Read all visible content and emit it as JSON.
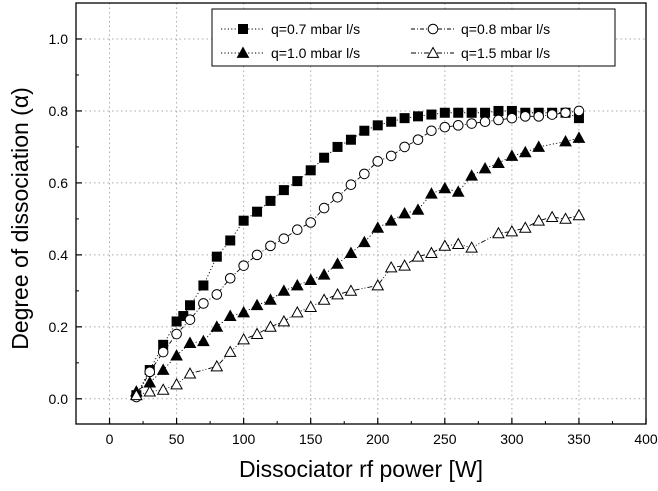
{
  "chart_data": {
    "type": "scatter",
    "title": "",
    "xlabel": "Dissociator rf power [W]",
    "ylabel": "Degree of dissociation (α)",
    "xlim": [
      -25,
      400
    ],
    "ylim": [
      -0.07,
      1.1
    ],
    "xticks": [
      0,
      50,
      100,
      150,
      200,
      250,
      300,
      350,
      400
    ],
    "xtick_labels": [
      "0",
      "50",
      "100",
      "150",
      "200",
      "250",
      "300",
      "350",
      "400"
    ],
    "yticks": [
      0.0,
      0.2,
      0.4,
      0.6,
      0.8,
      1.0
    ],
    "ytick_labels": [
      "0.0",
      "0.2",
      "0.4",
      "0.6",
      "0.8",
      "1.0"
    ],
    "grid": true,
    "legend_position": "top-right",
    "series": [
      {
        "name": "q=0.7 mbar l/s",
        "marker": "filled-square",
        "line": "dotted",
        "x": [
          20,
          30,
          40,
          50,
          55,
          60,
          70,
          80,
          90,
          100,
          110,
          120,
          130,
          140,
          150,
          160,
          170,
          180,
          190,
          200,
          210,
          220,
          230,
          240,
          250,
          260,
          270,
          280,
          290,
          300,
          310,
          320,
          330,
          340,
          350
        ],
        "y": [
          0.01,
          0.08,
          0.15,
          0.215,
          0.23,
          0.26,
          0.315,
          0.395,
          0.44,
          0.495,
          0.52,
          0.55,
          0.58,
          0.605,
          0.635,
          0.67,
          0.7,
          0.72,
          0.745,
          0.76,
          0.77,
          0.78,
          0.785,
          0.79,
          0.795,
          0.795,
          0.795,
          0.795,
          0.8,
          0.8,
          0.795,
          0.795,
          0.795,
          0.795,
          0.78
        ]
      },
      {
        "name": "q=0.8 mbar l/s",
        "marker": "open-circle",
        "line": "dash-dot",
        "x": [
          20,
          30,
          40,
          50,
          60,
          70,
          80,
          90,
          100,
          110,
          120,
          130,
          140,
          150,
          160,
          170,
          180,
          190,
          200,
          210,
          220,
          230,
          240,
          250,
          260,
          270,
          280,
          290,
          300,
          310,
          320,
          330,
          340,
          350
        ],
        "y": [
          0.005,
          0.075,
          0.13,
          0.18,
          0.22,
          0.265,
          0.29,
          0.335,
          0.37,
          0.4,
          0.425,
          0.445,
          0.47,
          0.49,
          0.53,
          0.56,
          0.595,
          0.625,
          0.66,
          0.675,
          0.7,
          0.72,
          0.745,
          0.755,
          0.76,
          0.765,
          0.77,
          0.775,
          0.78,
          0.785,
          0.785,
          0.79,
          0.795,
          0.8
        ]
      },
      {
        "name": "q=1.0 mbar l/s",
        "marker": "filled-triangle",
        "line": "dotted",
        "x": [
          20,
          30,
          40,
          50,
          60,
          70,
          80,
          90,
          100,
          110,
          120,
          130,
          140,
          150,
          160,
          170,
          180,
          190,
          200,
          210,
          220,
          230,
          240,
          250,
          260,
          270,
          280,
          290,
          300,
          310,
          320,
          340,
          350
        ],
        "y": [
          0.02,
          0.045,
          0.08,
          0.12,
          0.155,
          0.16,
          0.2,
          0.23,
          0.24,
          0.26,
          0.275,
          0.3,
          0.315,
          0.33,
          0.345,
          0.375,
          0.405,
          0.435,
          0.475,
          0.495,
          0.515,
          0.525,
          0.57,
          0.585,
          0.575,
          0.62,
          0.64,
          0.655,
          0.675,
          0.685,
          0.7,
          0.715,
          0.725
        ]
      },
      {
        "name": "q=1.5 mbar l/s",
        "marker": "open-triangle",
        "line": "dash-dot-dot",
        "x": [
          20,
          30,
          40,
          50,
          60,
          80,
          90,
          100,
          110,
          120,
          130,
          140,
          150,
          160,
          170,
          180,
          200,
          210,
          220,
          230,
          240,
          250,
          260,
          270,
          290,
          300,
          310,
          320,
          330,
          340,
          350
        ],
        "y": [
          0.01,
          0.02,
          0.025,
          0.04,
          0.07,
          0.09,
          0.13,
          0.165,
          0.18,
          0.2,
          0.215,
          0.24,
          0.255,
          0.275,
          0.29,
          0.3,
          0.315,
          0.365,
          0.37,
          0.395,
          0.405,
          0.425,
          0.43,
          0.42,
          0.46,
          0.465,
          0.475,
          0.495,
          0.505,
          0.5,
          0.51
        ]
      }
    ]
  }
}
